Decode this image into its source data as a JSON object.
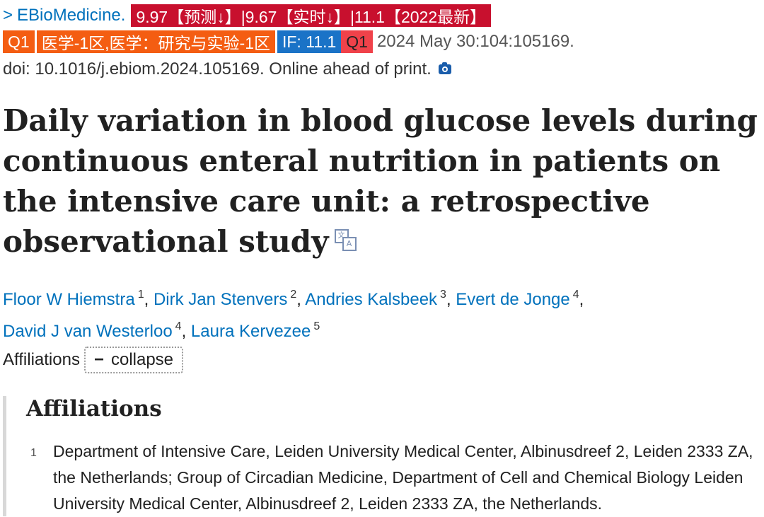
{
  "journal": {
    "name": "EBioMedicine.",
    "chevron": ">"
  },
  "metrics": {
    "badge_main": "9.97【预测↓】|9.67【实时↓】|11.1【2022最新】",
    "quartile_badge": "Q1",
    "category_badge": "医学-1区,医学：研究与实验-1区",
    "impact_factor_badge": "IF: 11.1",
    "quartile_badge_2": "Q1",
    "colors": {
      "dark_red": "#c8102e",
      "orange": "#f45d12",
      "blue": "#1a73c7",
      "light_red": "#f0424a"
    }
  },
  "citation": {
    "date_volume": "2024 May 30:104:105169.",
    "doi_line": "doi: 10.1016/j.ebiom.2024.105169. Online ahead of print.",
    "camera_icon": "camera-icon"
  },
  "article": {
    "title": "Daily variation in blood glucose levels during continuous enteral nutrition in patients on the intensive care unit: a retrospective observational study",
    "translate_icon": "translate-icon",
    "translate_glyph_1": "文",
    "translate_glyph_2": "A"
  },
  "authors": [
    {
      "name": "Floor W Hiemstra",
      "aff": "1"
    },
    {
      "name": "Dirk Jan Stenvers",
      "aff": "2"
    },
    {
      "name": "Andries Kalsbeek",
      "aff": "3"
    },
    {
      "name": "Evert de Jonge",
      "aff": "4"
    },
    {
      "name": "David J van Westerloo",
      "aff": "4"
    },
    {
      "name": "Laura Kervezee",
      "aff": "5"
    }
  ],
  "affiliations_toggle": {
    "label": "Affiliations",
    "button_symbol": "−",
    "button_label": "collapse"
  },
  "affiliations": {
    "heading": "Affiliations",
    "items": [
      {
        "num": "1",
        "text": "Department of Intensive Care, Leiden University Medical Center, Albinusdreef 2, Leiden 2333 ZA, the Netherlands; Group of Circadian Medicine, Department of Cell and Chemical Biology Leiden University Medical Center, Albinusdreef 2, Leiden 2333 ZA, the Netherlands."
      }
    ]
  }
}
